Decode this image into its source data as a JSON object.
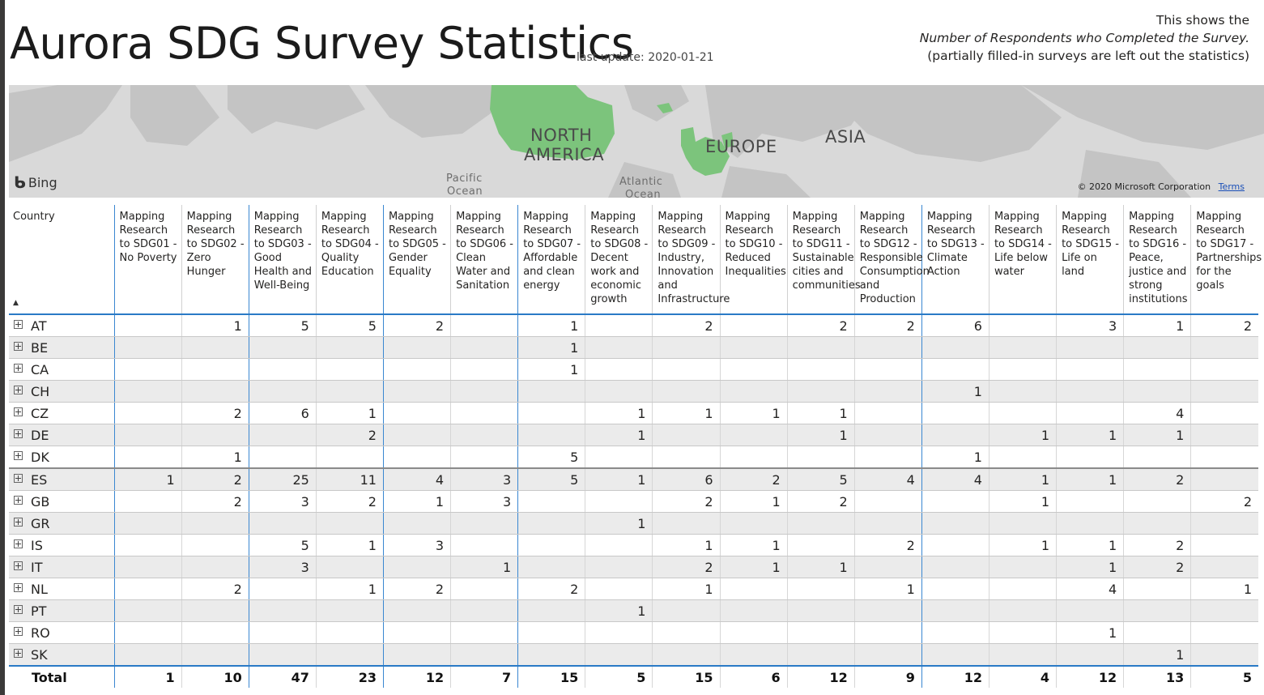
{
  "header": {
    "title": "Aurora SDG Survey Statistics",
    "last_update": "last update: 2020-01-21",
    "note_line1": "This shows the",
    "note_line2": "Number of Respondents who Completed the Survey.",
    "note_line3": "(partially filled-in surveys are left out the statistics)"
  },
  "map": {
    "provider": "Bing",
    "labels": {
      "north": "NORTH",
      "america": "AMERICA",
      "europe": "EUROPE",
      "asia": "ASIA",
      "pacific": "Pacific",
      "pacific_ocean": "Ocean",
      "atlantic": "Atlantic",
      "atlantic_ocean": "Ocean"
    },
    "copyright": "© 2020 Microsoft Corporation",
    "terms": "Terms",
    "colors": {
      "land": "#c4c4c4",
      "water": "#d9d9d9",
      "highlight": "#7cc47c"
    }
  },
  "table": {
    "country_header": "Country",
    "columns": [
      "Mapping Research to SDG01 - No Poverty",
      "Mapping Research to SDG02 - Zero Hunger",
      "Mapping Research to SDG03 - Good Health and Well-Being",
      "Mapping Research to SDG04 - Quality Education",
      "Mapping Research to SDG05 - Gender Equality",
      "Mapping Research to SDG06 - Clean Water and Sanitation",
      "Mapping Research to SDG07 - Affordable and clean energy",
      "Mapping Research to SDG08 - Decent work and economic growth",
      "Mapping Research to SDG09 - Industry, Innovation and Infrastructure",
      "Mapping Research to SDG10 - Reduced Inequalities",
      "Mapping Research to SDG11 - Sustainable cities and communities",
      "Mapping Research to SDG12 - Responsible Consumption and Production",
      "Mapping Research to SDG13 - Climate Action",
      "Mapping Research to SDG14 - Life below water",
      "Mapping Research to SDG15 - Life on land",
      "Mapping Research to SDG16 - Peace, justice and strong institutions",
      "Mapping Research to SDG17 - Partnerships for the goals"
    ],
    "rows": [
      {
        "country": "AT",
        "values": [
          "",
          "1",
          "5",
          "5",
          "2",
          "",
          "1",
          "",
          "2",
          "",
          "2",
          "2",
          "6",
          "",
          "3",
          "1",
          "2"
        ]
      },
      {
        "country": "BE",
        "values": [
          "",
          "",
          "",
          "",
          "",
          "",
          "1",
          "",
          "",
          "",
          "",
          "",
          "",
          "",
          "",
          "",
          ""
        ]
      },
      {
        "country": "CA",
        "values": [
          "",
          "",
          "",
          "",
          "",
          "",
          "1",
          "",
          "",
          "",
          "",
          "",
          "",
          "",
          "",
          "",
          ""
        ]
      },
      {
        "country": "CH",
        "values": [
          "",
          "",
          "",
          "",
          "",
          "",
          "",
          "",
          "",
          "",
          "",
          "",
          "1",
          "",
          "",
          "",
          ""
        ]
      },
      {
        "country": "CZ",
        "values": [
          "",
          "2",
          "6",
          "1",
          "",
          "",
          "",
          "1",
          "1",
          "1",
          "1",
          "",
          "",
          "",
          "",
          "4",
          ""
        ]
      },
      {
        "country": "DE",
        "values": [
          "",
          "",
          "",
          "2",
          "",
          "",
          "",
          "1",
          "",
          "",
          "1",
          "",
          "",
          "1",
          "1",
          "1",
          ""
        ]
      },
      {
        "country": "DK",
        "values": [
          "",
          "1",
          "",
          "",
          "",
          "",
          "5",
          "",
          "",
          "",
          "",
          "",
          "1",
          "",
          "",
          "",
          ""
        ]
      },
      {
        "country": "ES",
        "values": [
          "1",
          "2",
          "25",
          "11",
          "4",
          "3",
          "5",
          "1",
          "6",
          "2",
          "5",
          "4",
          "4",
          "1",
          "1",
          "2",
          ""
        ]
      },
      {
        "country": "GB",
        "values": [
          "",
          "2",
          "3",
          "2",
          "1",
          "3",
          "",
          "",
          "2",
          "1",
          "2",
          "",
          "",
          "1",
          "",
          "",
          "2"
        ]
      },
      {
        "country": "GR",
        "values": [
          "",
          "",
          "",
          "",
          "",
          "",
          "",
          "1",
          "",
          "",
          "",
          "",
          "",
          "",
          "",
          "",
          ""
        ]
      },
      {
        "country": "IS",
        "values": [
          "",
          "",
          "5",
          "1",
          "3",
          "",
          "",
          "",
          "1",
          "1",
          "",
          "2",
          "",
          "1",
          "1",
          "2",
          ""
        ]
      },
      {
        "country": "IT",
        "values": [
          "",
          "",
          "3",
          "",
          "",
          "1",
          "",
          "",
          "2",
          "1",
          "1",
          "",
          "",
          "",
          "1",
          "2",
          ""
        ]
      },
      {
        "country": "NL",
        "values": [
          "",
          "2",
          "",
          "1",
          "2",
          "",
          "2",
          "",
          "1",
          "",
          "",
          "1",
          "",
          "",
          "4",
          "",
          "1"
        ]
      },
      {
        "country": "PT",
        "values": [
          "",
          "",
          "",
          "",
          "",
          "",
          "",
          "1",
          "",
          "",
          "",
          "",
          "",
          "",
          "",
          "",
          ""
        ]
      },
      {
        "country": "RO",
        "values": [
          "",
          "",
          "",
          "",
          "",
          "",
          "",
          "",
          "",
          "",
          "",
          "",
          "",
          "",
          "1",
          "",
          ""
        ]
      },
      {
        "country": "SK",
        "values": [
          "",
          "",
          "",
          "",
          "",
          "",
          "",
          "",
          "",
          "",
          "",
          "",
          "",
          "",
          "",
          "1",
          ""
        ]
      }
    ],
    "total_label": "Total",
    "totals": [
      "1",
      "10",
      "47",
      "23",
      "12",
      "7",
      "15",
      "5",
      "15",
      "6",
      "12",
      "9",
      "12",
      "4",
      "12",
      "13",
      "5"
    ]
  }
}
